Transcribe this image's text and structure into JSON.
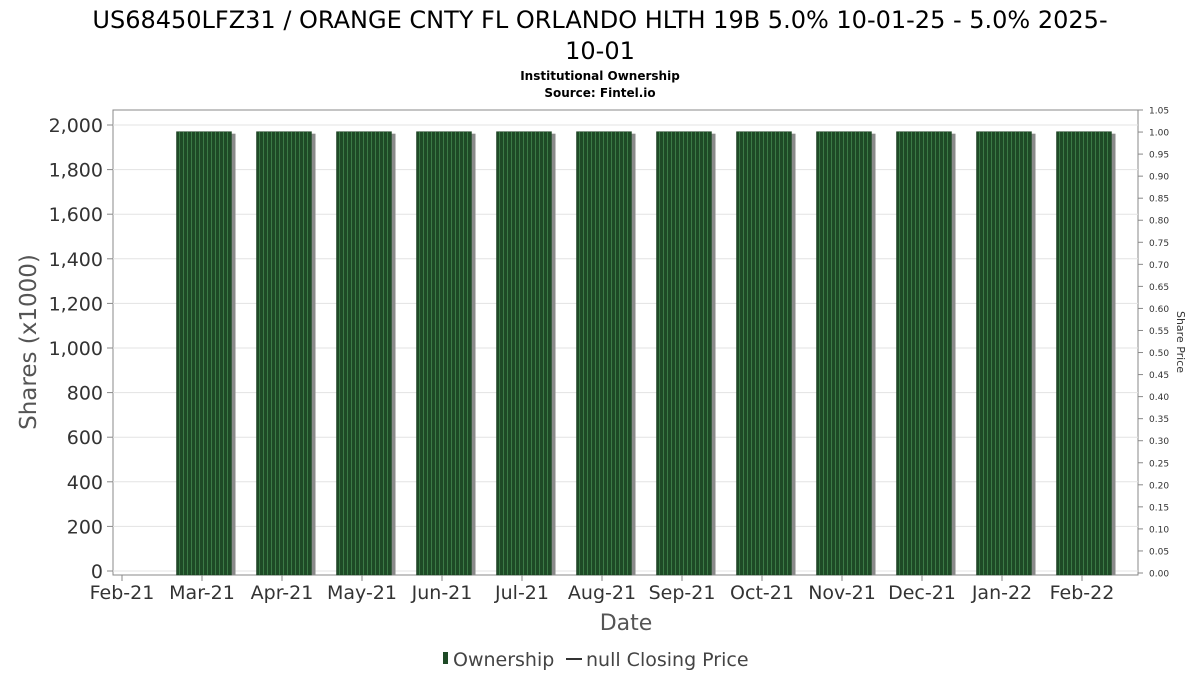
{
  "chart_data": {
    "type": "bar",
    "title_line1": "US68450LFZ31 / ORANGE CNTY FL ORLANDO HLTH 19B 5.0% 10-01-25 - 5.0% 2025-",
    "title_line2": "10-01",
    "subtitle1": "Institutional Ownership",
    "subtitle2": "Source: Fintel.io",
    "xlabel": "Date",
    "ylabel": "Shares (x1000)",
    "y2label": "Share Price",
    "x_ticks": [
      "Feb-21",
      "Mar-21",
      "Apr-21",
      "May-21",
      "Jun-21",
      "Jul-21",
      "Aug-21",
      "Sep-21",
      "Oct-21",
      "Nov-21",
      "Dec-21",
      "Jan-22",
      "Feb-22"
    ],
    "categories": [
      "Mar-21",
      "Apr-21",
      "May-21",
      "Jun-21",
      "Jul-21",
      "Aug-21",
      "Sep-21",
      "Oct-21",
      "Nov-21",
      "Dec-21",
      "Jan-22",
      "Feb-22"
    ],
    "series": [
      {
        "name": "Ownership",
        "values": [
          1970,
          1970,
          1970,
          1970,
          1970,
          1970,
          1970,
          1970,
          1970,
          1970,
          1970,
          1970
        ]
      }
    ],
    "ylim": [
      0,
      2000
    ],
    "y_ticks": [
      "0",
      "200",
      "400",
      "600",
      "800",
      "1,000",
      "1,200",
      "1,400",
      "1,600",
      "1,800",
      "2,000"
    ],
    "y2lim": [
      0,
      1.05
    ],
    "y2_ticks": [
      "0.00",
      "0.05",
      "0.10",
      "0.15",
      "0.20",
      "0.25",
      "0.30",
      "0.35",
      "0.40",
      "0.45",
      "0.50",
      "0.55",
      "0.60",
      "0.65",
      "0.70",
      "0.75",
      "0.80",
      "0.85",
      "0.90",
      "0.95",
      "1.00",
      "1.05"
    ],
    "legend": [
      {
        "label": "Ownership",
        "color": "#1e4a26"
      },
      {
        "label": "null Closing Price",
        "color": "#333333"
      }
    ],
    "legend_position": "bottom-center",
    "grid": true,
    "colors": {
      "bar": "#1e4a26",
      "bar_stripe": "#3b7a46",
      "shadow": "#8a8a8a"
    }
  }
}
